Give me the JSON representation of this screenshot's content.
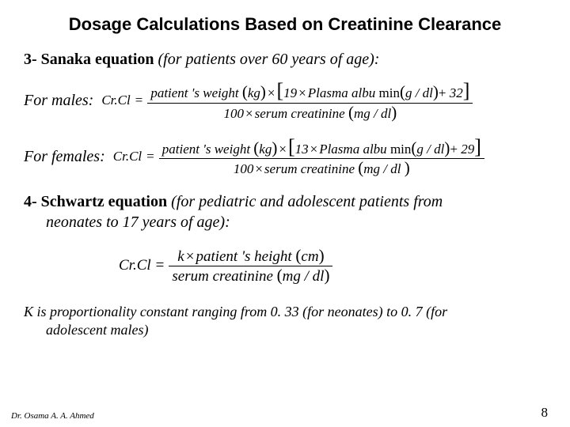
{
  "title": "Dosage Calculations Based on Creatinine Clearance",
  "sec3": {
    "num": "3- ",
    "name": "Sanaka equation",
    "qual": " (for patients over 60 years of age):"
  },
  "male_label": "For males:",
  "female_label": "For females:",
  "formula_male": {
    "lhs": "Cr.Cl",
    "num_left": "patient 's weight",
    "num_unit": "kg",
    "inner": "19",
    "albu": "Plasma  albu",
    "min": "min",
    "gdl": "g / dl",
    "const": "32",
    "den_prefix": "100",
    "den_main": "serum creatinine",
    "den_unit": "mg / dl"
  },
  "formula_female": {
    "lhs": "Cr.Cl",
    "num_left": "patient 's weight",
    "num_unit": "kg",
    "inner": "13",
    "albu": "Plasma  albu",
    "min": "min",
    "gdl": "g / dl",
    "const": "29",
    "den_prefix": "100",
    "den_main": "serum creatinine ",
    "den_unit": "mg / dl "
  },
  "sec4": {
    "num": "4- ",
    "name": "Schwartz equation",
    "qual_a": " (for pediatric and adolescent patients from",
    "qual_b": "neonates to 17 years of age):"
  },
  "formula_schwartz": {
    "lhs": "Cr.Cl",
    "num_a": "k",
    "num_b": "patient 's  height ",
    "num_unit": "cm",
    "den_a": "serum creatinine ",
    "den_unit": "mg / dl"
  },
  "knote": {
    "l1": "K is proportionality constant ranging from 0. 33 (for neonates) to 0. 7 (for",
    "l2": "adolescent males)"
  },
  "footer": {
    "author": "Dr. Osama A. A. Ahmed",
    "page": "8"
  },
  "colors": {
    "text": "#000000",
    "background": "#ffffff"
  }
}
